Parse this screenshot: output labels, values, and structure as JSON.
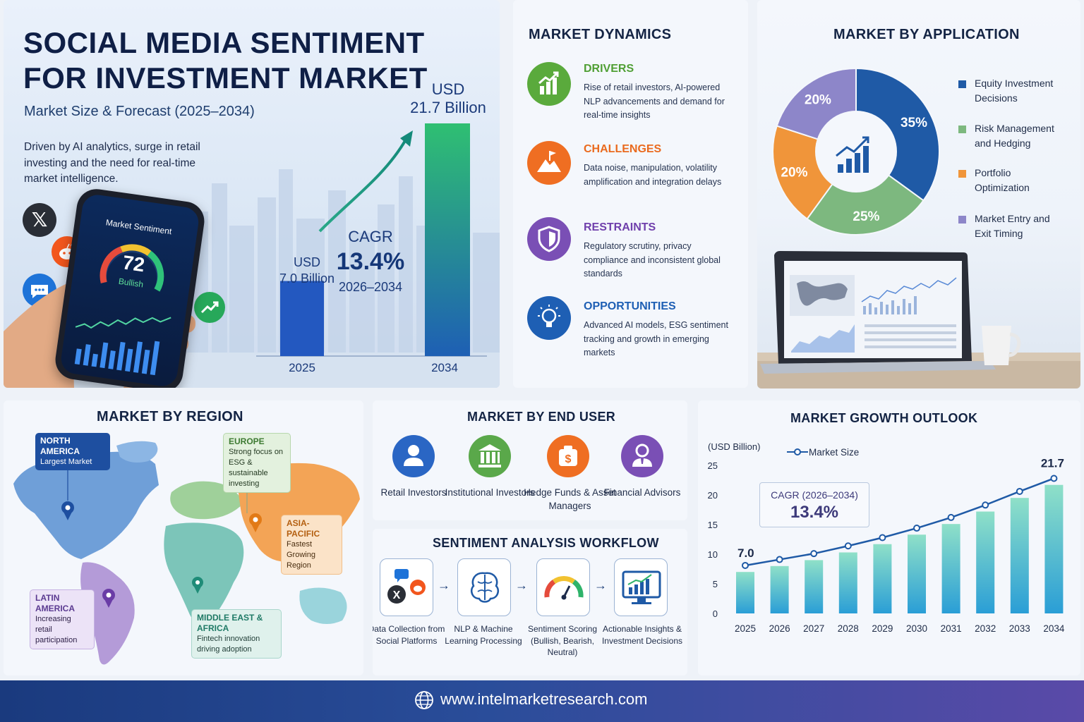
{
  "hero": {
    "title_line1": "SOCIAL MEDIA SENTIMENT",
    "title_line2": "FOR INVESTMENT MARKET",
    "subtitle": "Market Size & Forecast (2025–2034)",
    "description": "Driven by AI analytics, surge in retail investing and the need for real-time market intelligence.",
    "phone_title": "Market Sentiment",
    "phone_score": "72",
    "phone_mood": "Bullish",
    "bar_2025_label": "USD",
    "bar_2025_value": "7.0 Billion",
    "bar_2034_label": "USD",
    "bar_2034_value": "21.7 Billion",
    "cagr_label": "CAGR",
    "cagr_value": "13.4%",
    "cagr_period": "2026–2034",
    "year_start": "2025",
    "year_end": "2034"
  },
  "dynamics": {
    "title": "MARKET DYNAMICS",
    "items": [
      {
        "head": "DRIVERS",
        "text": "Rise of retail investors, AI-powered NLP advancements and demand for real-time insights",
        "color": "#5aaa3c"
      },
      {
        "head": "CHALLENGES",
        "text": "Data noise, manipulation, volatility amplification and integration delays",
        "color": "#ef6e22"
      },
      {
        "head": "RESTRAINTS",
        "text": "Regulatory scrutiny, privacy compliance and inconsistent global standards",
        "color": "#7a4fb5"
      },
      {
        "head": "OPPORTUNITIES",
        "text": "Advanced AI models, ESG sentiment tracking and growth in emerging markets",
        "color": "#1e5fb4"
      }
    ]
  },
  "application": {
    "title": "MARKET BY APPLICATION",
    "legend": [
      {
        "label": "Equity Investment Decisions",
        "color": "#1f5aa6"
      },
      {
        "label": "Risk Management and Hedging",
        "color": "#7db87f"
      },
      {
        "label": "Portfolio Optimization",
        "color": "#f0953a"
      },
      {
        "label": "Market Entry and Exit Timing",
        "color": "#8d86c9"
      }
    ]
  },
  "region": {
    "title": "MARKET BY REGION",
    "north_america": {
      "name": "NORTH AMERICA",
      "note": "Largest Market"
    },
    "europe": {
      "name": "EUROPE",
      "note": "Strong focus on ESG & sustainable investing"
    },
    "asia_pacific": {
      "name": "ASIA-PACIFIC",
      "note": "Fastest Growing Region"
    },
    "latin_america": {
      "name": "LATIN AMERICA",
      "note": "Increasing retail participation"
    },
    "mea": {
      "name": "MIDDLE EAST & AFRICA",
      "note": "Fintech innovation driving adoption"
    }
  },
  "end_user": {
    "title": "MARKET BY END USER",
    "items": [
      {
        "label": "Retail Investors",
        "color": "#2a66c4"
      },
      {
        "label": "Institutional Investors",
        "color": "#5aa84a"
      },
      {
        "label": "Hedge Funds & Asset Managers",
        "color": "#ef6e22"
      },
      {
        "label": "Financial Advisors",
        "color": "#7a4fb5"
      }
    ]
  },
  "workflow": {
    "title": "SENTIMENT ANALYSIS WORKFLOW",
    "steps": [
      {
        "label": "Data Collection from Social Platforms"
      },
      {
        "label": "NLP & Machine Learning Processing"
      },
      {
        "label": "Sentiment Scoring (Bullish, Bearish, Neutral)"
      },
      {
        "label": "Actionable Insights & Investment Decisions"
      }
    ]
  },
  "growth": {
    "title": "MARKET GROWTH OUTLOOK",
    "unit": "(USD Billion)",
    "legend": "Market Size",
    "cagr_label": "CAGR (2026–2034)",
    "cagr_value": "13.4%"
  },
  "footer": {
    "url": "www.intelmarketresearch.com"
  },
  "chart_data": [
    {
      "type": "bar",
      "categories": [
        "2025",
        "2034"
      ],
      "values": [
        7.0,
        21.7
      ],
      "value_labels": [
        "USD 7.0 Billion",
        "USD 21.7 Billion"
      ],
      "cagr": "13.4%"
    },
    {
      "type": "pie",
      "labels": [
        "Equity Investment Decisions",
        "Risk Management and Hedging",
        "Portfolio Optimization",
        "Market Entry and Exit Timing"
      ],
      "values": [
        35,
        25,
        20,
        20
      ],
      "value_labels": [
        "35%",
        "25%",
        "20%",
        "20%"
      ],
      "colors": [
        "#1f5aa6",
        "#7db87f",
        "#f0953a",
        "#8d86c9"
      ],
      "legend_placement": "right"
    },
    {
      "type": "bar",
      "title": "MARKET GROWTH OUTLOOK",
      "ylabel": "(USD Billion)",
      "categories": [
        "2025",
        "2026",
        "2027",
        "2028",
        "2029",
        "2030",
        "2031",
        "2032",
        "2033",
        "2034"
      ],
      "series": [
        {
          "name": "Market Size",
          "values": [
            7.0,
            8.0,
            9.0,
            10.3,
            11.7,
            13.3,
            15.1,
            17.2,
            19.5,
            21.7
          ]
        }
      ],
      "first_label": "7.0",
      "last_label": "21.7",
      "ylim": [
        0,
        25
      ],
      "yticks": [
        "0",
        "5",
        "10",
        "15",
        "20",
        "25"
      ],
      "line_overlay": true,
      "legend_placement": "top"
    }
  ]
}
